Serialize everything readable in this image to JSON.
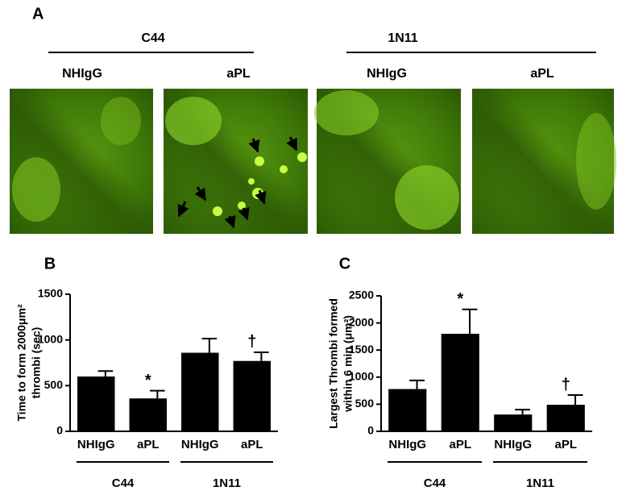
{
  "panel_a": {
    "label": "A",
    "groups": [
      {
        "name": "C44",
        "conditions": [
          "NHIgG",
          "aPL"
        ]
      },
      {
        "name": "1N11",
        "conditions": [
          "NHIgG",
          "aPL"
        ]
      }
    ]
  },
  "chart_data": [
    {
      "type": "bar",
      "panel": "B",
      "ylabel": [
        "Time to form 2000μm²",
        "thrombi (sec)"
      ],
      "categories": [
        "NHIgG",
        "aPL",
        "NHIgG",
        "aPL"
      ],
      "groups": [
        "C44",
        "1N11"
      ],
      "values": [
        600,
        360,
        860,
        770
      ],
      "errors": [
        60,
        85,
        155,
        95
      ],
      "annotations": [
        null,
        "*",
        null,
        "†"
      ],
      "color": "#000000",
      "ylim": [
        0,
        1500
      ],
      "yticks": [
        0,
        500,
        1000,
        1500
      ]
    },
    {
      "type": "bar",
      "panel": "C",
      "ylabel": [
        "Largest Thrombi formed",
        "within 6 min (μm²)"
      ],
      "categories": [
        "NHIgG",
        "aPL",
        "NHIgG",
        "aPL"
      ],
      "groups": [
        "C44",
        "1N11"
      ],
      "values": [
        780,
        1800,
        310,
        490
      ],
      "errors": [
        160,
        450,
        90,
        180
      ],
      "annotations": [
        null,
        "*",
        null,
        "†"
      ],
      "color": "#000000",
      "ylim": [
        0,
        2500
      ],
      "yticks": [
        0,
        500,
        1000,
        1500,
        2000,
        2500
      ]
    }
  ]
}
